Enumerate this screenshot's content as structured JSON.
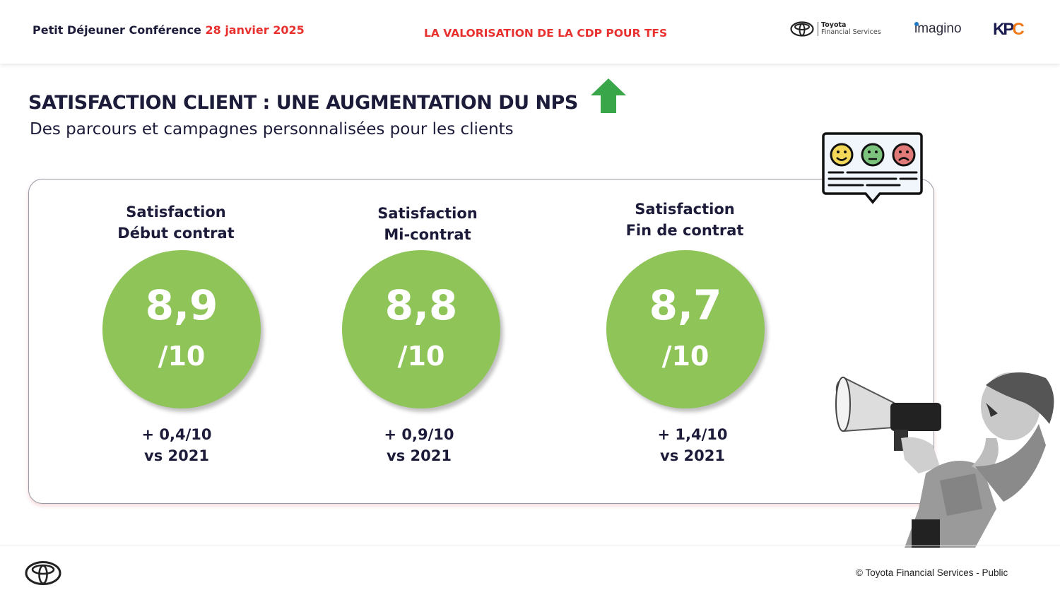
{
  "header": {
    "event": "Petit Déjeuner Conférence",
    "date": "28 janvier 2025",
    "topic": "LA VALORISATION DE LA CDP POUR TFS",
    "logos": {
      "tfs_line1": "Toyota",
      "tfs_line2": "Financial Services",
      "imagino": "imagino",
      "kpc": "KPC"
    }
  },
  "slide": {
    "title": "SATISFACTION CLIENT : UNE AUGMENTATION DU NPS",
    "title_icon": "green-up-arrow",
    "subtitle": "Des parcours et campagnes personnalisées pour les clients",
    "metrics": [
      {
        "label_line1": "Satisfaction",
        "label_line2": "Début contrat",
        "score": "8,9",
        "scale": "/10",
        "delta": "+ 0,4/10",
        "comparison": "vs 2021"
      },
      {
        "label_line1": "Satisfaction",
        "label_line2": "Mi-contrat",
        "score": "8,8",
        "scale": "/10",
        "delta": "+ 0,9/10",
        "comparison": "vs 2021"
      },
      {
        "label_line1": "Satisfaction",
        "label_line2": "Fin de contrat",
        "score": "8,7",
        "scale": "/10",
        "delta": "+ 1,4/10",
        "comparison": "vs 2021"
      }
    ]
  },
  "footer": {
    "copyright": "© Toyota Financial Services - Public"
  },
  "colors": {
    "accent_red": "#e8312f",
    "circle_green": "#8fc459",
    "arrow_green": "#3aa64a",
    "navy": "#1c1c3a"
  }
}
